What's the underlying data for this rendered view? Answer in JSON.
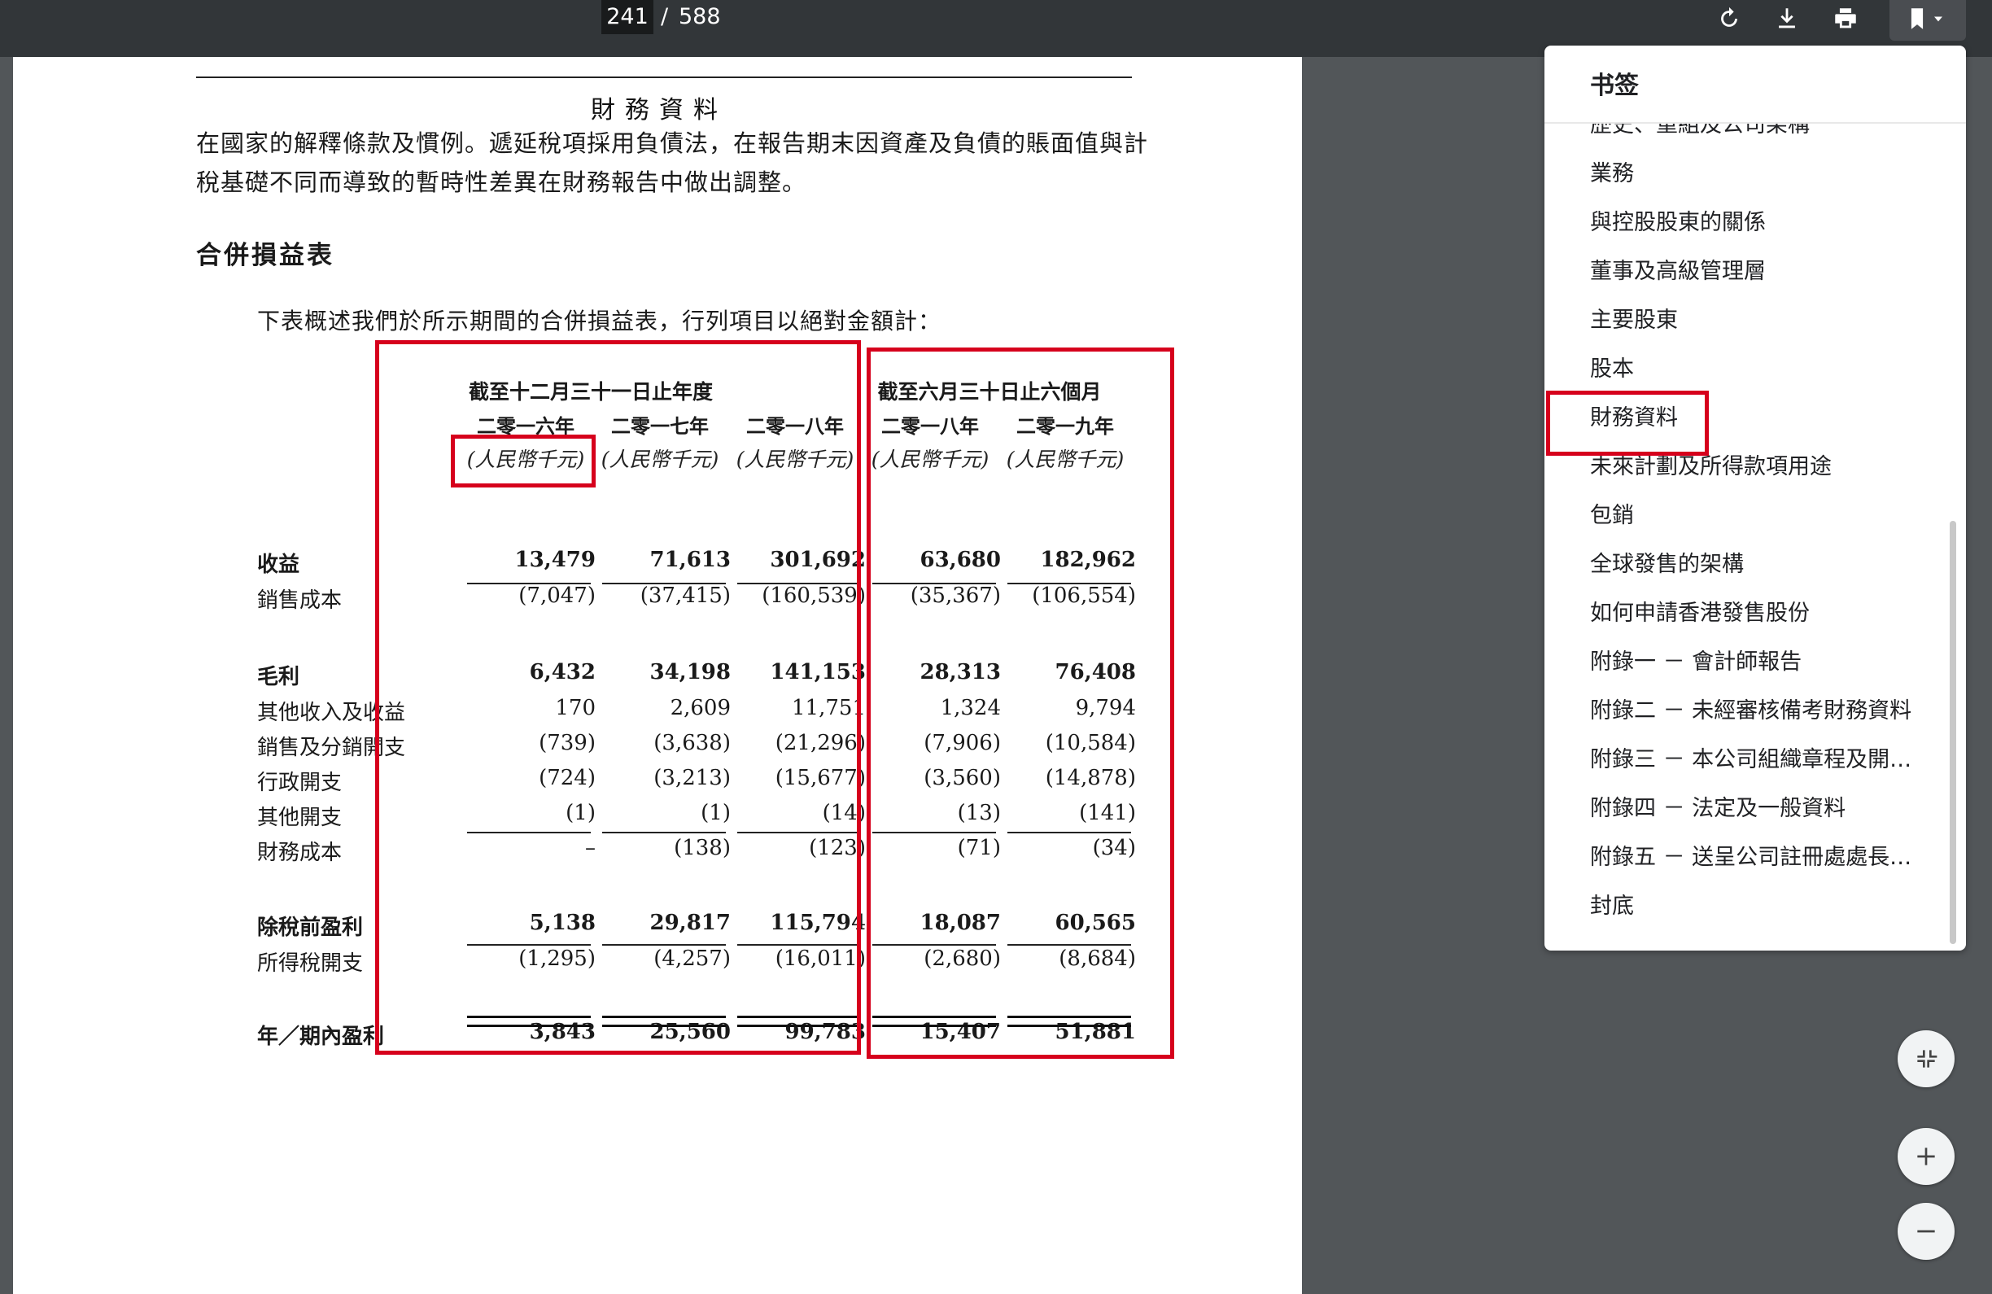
{
  "toolbar": {
    "current_page": "241",
    "separator": "/",
    "total_pages": "588",
    "icons": [
      "rotate-icon",
      "download-icon",
      "print-icon",
      "bookmark-icon",
      "chevron-down-icon"
    ]
  },
  "document": {
    "section_title": "財務資料",
    "paragraph": "在國家的解釋條款及慣例。遞延稅項採用負債法，在報告期末因資產及負債的賬面值與計稅基礎不同而導致的暫時性差異在財務報告中做出調整。",
    "subheading": "合併損益表",
    "intro": "下表概述我們於所示期間的合併損益表，行列項目以絕對金額計：",
    "table": {
      "group_year": "截至十二月三十一日止年度",
      "group_half": "截至六月三十日止六個月",
      "years": [
        "二零一六年",
        "二零一七年",
        "二零一八年",
        "二零一八年",
        "二零一九年"
      ],
      "unit": "(人民幣千元)",
      "rows": [
        {
          "label": "收益",
          "bold": true,
          "values": [
            "13,479",
            "71,613",
            "301,692",
            "63,680",
            "182,962"
          ]
        },
        {
          "label": "銷售成本",
          "bold": false,
          "values": [
            "(7,047)",
            "(37,415)",
            "(160,539)",
            "(35,367)",
            "(106,554)"
          ]
        },
        {
          "label": "毛利",
          "bold": true,
          "values": [
            "6,432",
            "34,198",
            "141,153",
            "28,313",
            "76,408"
          ]
        },
        {
          "label": "其他收入及收益",
          "bold": false,
          "values": [
            "170",
            "2,609",
            "11,751",
            "1,324",
            "9,794"
          ]
        },
        {
          "label": "銷售及分銷開支",
          "bold": false,
          "values": [
            "(739)",
            "(3,638)",
            "(21,296)",
            "(7,906)",
            "(10,584)"
          ]
        },
        {
          "label": "行政開支",
          "bold": false,
          "values": [
            "(724)",
            "(3,213)",
            "(15,677)",
            "(3,560)",
            "(14,878)"
          ]
        },
        {
          "label": "其他開支",
          "bold": false,
          "values": [
            "(1)",
            "(1)",
            "(14)",
            "(13)",
            "(141)"
          ]
        },
        {
          "label": "財務成本",
          "bold": false,
          "values": [
            "–",
            "(138)",
            "(123)",
            "(71)",
            "(34)"
          ]
        },
        {
          "label": "除稅前盈利",
          "bold": true,
          "values": [
            "5,138",
            "29,817",
            "115,794",
            "18,087",
            "60,565"
          ]
        },
        {
          "label": "所得稅開支",
          "bold": false,
          "values": [
            "(1,295)",
            "(4,257)",
            "(16,011)",
            "(2,680)",
            "(8,684)"
          ]
        },
        {
          "label": "年／期內盈利",
          "bold": true,
          "values": [
            "3,843",
            "25,560",
            "99,783",
            "15,407",
            "51,881"
          ]
        }
      ]
    }
  },
  "bookmarks": {
    "title": "书签",
    "items": [
      "歷史、重組及公司架構",
      "業務",
      "與控股股東的關係",
      "董事及高級管理層",
      "主要股東",
      "股本",
      "財務資料",
      "未來計劃及所得款項用途",
      "包銷",
      "全球發售的架構",
      "如何申請香港發售股份",
      "附錄一 － 會計師報告",
      "附錄二 － 未經審核備考財務資料",
      "附錄三 － 本公司組織章程及開曼群島公司法概要",
      "附錄四 － 法定及一般資料",
      "附錄五 － 送呈公司註冊處處長及備查文件",
      "封底"
    ],
    "selected": "財務資料"
  },
  "zoom_controls": [
    "fit-page-icon",
    "zoom-in-icon",
    "zoom-out-icon"
  ],
  "colors": {
    "toolbar_bg": "#323639",
    "viewer_bg": "#525659",
    "highlight": "#d6001c"
  }
}
